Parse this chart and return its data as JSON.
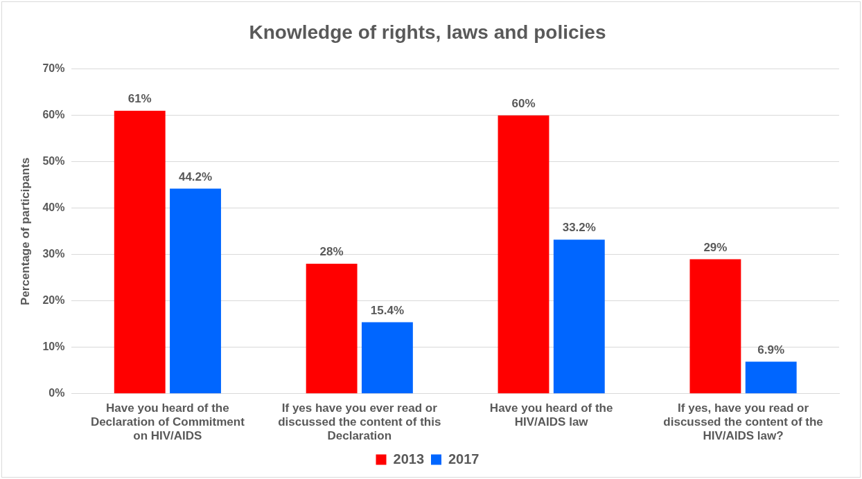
{
  "chart_data": {
    "type": "bar",
    "title": "Knowledge of rights, laws and policies",
    "ylabel": "Percentage of participants",
    "categories": [
      "Have you heard of the Declaration of Commitment on HIV/AIDS",
      "If yes have you ever read or discussed the content of this Declaration",
      "Have you heard of the HIV/AIDS law",
      "If yes, have you read or discussed the content of the HIV/AIDS law?"
    ],
    "series": [
      {
        "name": "2013",
        "color": "#ff0000",
        "values": [
          61,
          28,
          60,
          29
        ],
        "value_labels": [
          "61%",
          "28%",
          "60%",
          "29%"
        ]
      },
      {
        "name": "2017",
        "color": "#0066ff",
        "values": [
          44.2,
          15.4,
          33.2,
          6.9
        ],
        "value_labels": [
          "44.2%",
          "15.4%",
          "33.2%",
          "6.9%"
        ]
      }
    ],
    "ylim": [
      0,
      70
    ],
    "yticks": [
      {
        "value": 0,
        "label": "0%"
      },
      {
        "value": 10,
        "label": "10%"
      },
      {
        "value": 20,
        "label": "20%"
      },
      {
        "value": 30,
        "label": "30%"
      },
      {
        "value": 40,
        "label": "40%"
      },
      {
        "value": 50,
        "label": "50%"
      },
      {
        "value": 60,
        "label": "60%"
      },
      {
        "value": 70,
        "label": "70%"
      }
    ],
    "grid": "y",
    "legend": "bottom"
  }
}
